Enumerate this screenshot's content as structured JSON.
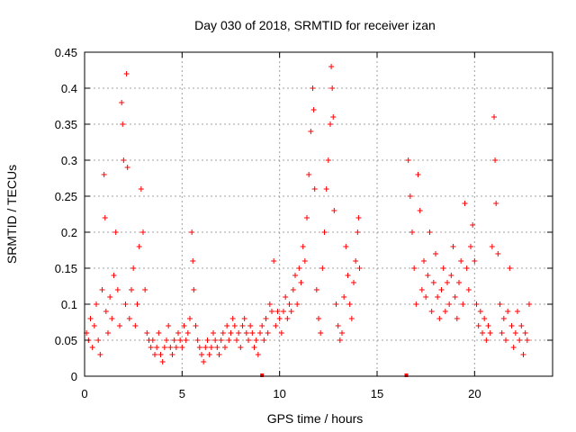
{
  "chart_data": {
    "type": "scatter",
    "title": "Day 030 of 2018, SRMTID for receiver izan",
    "xlabel": "GPS time / hours",
    "ylabel": "SRMTID / TECUs",
    "xlim": [
      0,
      24
    ],
    "ylim": [
      0,
      0.45
    ],
    "x_ticks": [
      "0",
      "5",
      "10",
      "15",
      "20"
    ],
    "y_ticks": [
      "0",
      "0.05",
      "0.1",
      "0.15",
      "0.2",
      "0.25",
      "0.3",
      "0.35",
      "0.4",
      "0.45"
    ],
    "grid": true,
    "marker": "plus",
    "color": "#ff0000",
    "series": [
      {
        "values_description_free": true,
        "points": [
          [
            0.1,
            0.06
          ],
          [
            0.2,
            0.05
          ],
          [
            0.3,
            0.08
          ],
          [
            0.4,
            0.04
          ],
          [
            0.5,
            0.07
          ],
          [
            0.6,
            0.1
          ],
          [
            0.7,
            0.05
          ],
          [
            0.8,
            0.03
          ],
          [
            0.9,
            0.12
          ],
          [
            1.0,
            0.28
          ],
          [
            1.05,
            0.22
          ],
          [
            1.1,
            0.09
          ],
          [
            1.2,
            0.06
          ],
          [
            1.3,
            0.11
          ],
          [
            1.4,
            0.08
          ],
          [
            1.5,
            0.14
          ],
          [
            1.6,
            0.2
          ],
          [
            1.7,
            0.12
          ],
          [
            1.8,
            0.07
          ],
          [
            1.9,
            0.38
          ],
          [
            1.95,
            0.35
          ],
          [
            2.0,
            0.3
          ],
          [
            2.1,
            0.1
          ],
          [
            2.15,
            0.42
          ],
          [
            2.2,
            0.29
          ],
          [
            2.3,
            0.08
          ],
          [
            2.4,
            0.12
          ],
          [
            2.5,
            0.15
          ],
          [
            2.6,
            0.07
          ],
          [
            2.7,
            0.1
          ],
          [
            2.8,
            0.18
          ],
          [
            2.9,
            0.26
          ],
          [
            3.0,
            0.2
          ],
          [
            3.1,
            0.12
          ],
          [
            3.2,
            0.06
          ],
          [
            3.3,
            0.05
          ],
          [
            3.4,
            0.04
          ],
          [
            3.5,
            0.05
          ],
          [
            3.6,
            0.03
          ],
          [
            3.7,
            0.04
          ],
          [
            3.8,
            0.06
          ],
          [
            3.9,
            0.03
          ],
          [
            4.0,
            0.02
          ],
          [
            4.1,
            0.04
          ],
          [
            4.2,
            0.05
          ],
          [
            4.3,
            0.07
          ],
          [
            4.4,
            0.04
          ],
          [
            4.5,
            0.03
          ],
          [
            4.6,
            0.05
          ],
          [
            4.7,
            0.04
          ],
          [
            4.8,
            0.06
          ],
          [
            4.9,
            0.05
          ],
          [
            5.0,
            0.04
          ],
          [
            5.1,
            0.07
          ],
          [
            5.2,
            0.05
          ],
          [
            5.3,
            0.06
          ],
          [
            5.4,
            0.08
          ],
          [
            5.5,
            0.2
          ],
          [
            5.55,
            0.16
          ],
          [
            5.6,
            0.12
          ],
          [
            5.7,
            0.07
          ],
          [
            5.8,
            0.05
          ],
          [
            5.9,
            0.04
          ],
          [
            6.0,
            0.03
          ],
          [
            6.1,
            0.02
          ],
          [
            6.2,
            0.04
          ],
          [
            6.3,
            0.05
          ],
          [
            6.4,
            0.03
          ],
          [
            6.5,
            0.04
          ],
          [
            6.6,
            0.06
          ],
          [
            6.7,
            0.05
          ],
          [
            6.8,
            0.04
          ],
          [
            6.9,
            0.03
          ],
          [
            7.0,
            0.05
          ],
          [
            7.1,
            0.06
          ],
          [
            7.2,
            0.04
          ],
          [
            7.3,
            0.07
          ],
          [
            7.4,
            0.05
          ],
          [
            7.5,
            0.06
          ],
          [
            7.6,
            0.08
          ],
          [
            7.7,
            0.07
          ],
          [
            7.8,
            0.05
          ],
          [
            7.9,
            0.06
          ],
          [
            8.0,
            0.04
          ],
          [
            8.1,
            0.07
          ],
          [
            8.2,
            0.08
          ],
          [
            8.3,
            0.06
          ],
          [
            8.4,
            0.05
          ],
          [
            8.5,
            0.07
          ],
          [
            8.6,
            0.06
          ],
          [
            8.7,
            0.04
          ],
          [
            8.8,
            0.05
          ],
          [
            8.9,
            0.03
          ],
          [
            9.0,
            0.06
          ],
          [
            9.1,
            0.07
          ],
          [
            9.2,
            0.05
          ],
          [
            9.3,
            0.08
          ],
          [
            9.4,
            0.06
          ],
          [
            9.5,
            0.1
          ],
          [
            9.6,
            0.09
          ],
          [
            9.7,
            0.16
          ],
          [
            9.8,
            0.07
          ],
          [
            9.9,
            0.09
          ],
          [
            10.0,
            0.08
          ],
          [
            10.1,
            0.06
          ],
          [
            10.2,
            0.09
          ],
          [
            10.3,
            0.11
          ],
          [
            10.4,
            0.08
          ],
          [
            10.5,
            0.1
          ],
          [
            10.6,
            0.09
          ],
          [
            10.7,
            0.12
          ],
          [
            10.8,
            0.14
          ],
          [
            10.9,
            0.1
          ],
          [
            11.0,
            0.15
          ],
          [
            11.1,
            0.13
          ],
          [
            11.2,
            0.18
          ],
          [
            11.3,
            0.16
          ],
          [
            11.4,
            0.22
          ],
          [
            11.5,
            0.28
          ],
          [
            11.6,
            0.34
          ],
          [
            11.7,
            0.4
          ],
          [
            11.75,
            0.37
          ],
          [
            11.8,
            0.26
          ],
          [
            11.9,
            0.12
          ],
          [
            12.0,
            0.08
          ],
          [
            12.1,
            0.06
          ],
          [
            12.2,
            0.15
          ],
          [
            12.3,
            0.2
          ],
          [
            12.4,
            0.26
          ],
          [
            12.5,
            0.3
          ],
          [
            12.6,
            0.35
          ],
          [
            12.65,
            0.43
          ],
          [
            12.7,
            0.4
          ],
          [
            12.75,
            0.36
          ],
          [
            12.8,
            0.23
          ],
          [
            12.9,
            0.1
          ],
          [
            13.0,
            0.07
          ],
          [
            13.1,
            0.05
          ],
          [
            13.2,
            0.06
          ],
          [
            13.3,
            0.11
          ],
          [
            13.4,
            0.18
          ],
          [
            13.5,
            0.14
          ],
          [
            13.6,
            0.1
          ],
          [
            13.7,
            0.08
          ],
          [
            13.8,
            0.13
          ],
          [
            13.9,
            0.16
          ],
          [
            14.0,
            0.2
          ],
          [
            14.05,
            0.22
          ],
          [
            14.1,
            0.15
          ],
          [
            16.6,
            0.3
          ],
          [
            16.7,
            0.25
          ],
          [
            16.8,
            0.2
          ],
          [
            16.9,
            0.15
          ],
          [
            17.0,
            0.1
          ],
          [
            17.1,
            0.28
          ],
          [
            17.2,
            0.23
          ],
          [
            17.3,
            0.12
          ],
          [
            17.4,
            0.16
          ],
          [
            17.5,
            0.11
          ],
          [
            17.6,
            0.14
          ],
          [
            17.7,
            0.2
          ],
          [
            17.8,
            0.09
          ],
          [
            17.9,
            0.13
          ],
          [
            18.0,
            0.17
          ],
          [
            18.1,
            0.11
          ],
          [
            18.2,
            0.08
          ],
          [
            18.3,
            0.12
          ],
          [
            18.4,
            0.15
          ],
          [
            18.5,
            0.09
          ],
          [
            18.6,
            0.13
          ],
          [
            18.7,
            0.1
          ],
          [
            18.8,
            0.14
          ],
          [
            18.9,
            0.18
          ],
          [
            19.0,
            0.11
          ],
          [
            19.1,
            0.08
          ],
          [
            19.2,
            0.13
          ],
          [
            19.3,
            0.16
          ],
          [
            19.4,
            0.1
          ],
          [
            19.5,
            0.24
          ],
          [
            19.6,
            0.15
          ],
          [
            19.7,
            0.12
          ],
          [
            19.8,
            0.18
          ],
          [
            19.9,
            0.21
          ],
          [
            20.0,
            0.16
          ],
          [
            20.1,
            0.1
          ],
          [
            20.2,
            0.07
          ],
          [
            20.3,
            0.09
          ],
          [
            20.4,
            0.06
          ],
          [
            20.5,
            0.08
          ],
          [
            20.6,
            0.05
          ],
          [
            20.7,
            0.07
          ],
          [
            20.8,
            0.06
          ],
          [
            20.9,
            0.18
          ],
          [
            21.0,
            0.36
          ],
          [
            21.05,
            0.3
          ],
          [
            21.1,
            0.24
          ],
          [
            21.2,
            0.17
          ],
          [
            21.3,
            0.1
          ],
          [
            21.4,
            0.06
          ],
          [
            21.5,
            0.08
          ],
          [
            21.6,
            0.05
          ],
          [
            21.7,
            0.09
          ],
          [
            21.8,
            0.15
          ],
          [
            21.9,
            0.07
          ],
          [
            22.0,
            0.04
          ],
          [
            22.1,
            0.06
          ],
          [
            22.2,
            0.09
          ],
          [
            22.3,
            0.05
          ],
          [
            22.4,
            0.07
          ],
          [
            22.5,
            0.03
          ],
          [
            22.6,
            0.06
          ],
          [
            22.7,
            0.05
          ],
          [
            22.8,
            0.1
          ]
        ]
      }
    ],
    "baseline_marks": [
      [
        9.1,
        0.0
      ],
      [
        16.5,
        0.0
      ]
    ]
  }
}
